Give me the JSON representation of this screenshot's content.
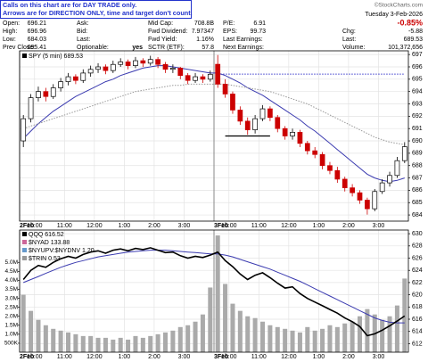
{
  "notice": [
    "Calls on this chart are for DAY TRADE only.",
    "Arrows are for DIRECTION ONLY, time and target don't count."
  ],
  "copyright": "©StockCharts.com",
  "date": "Tuesday  3-Feb-2026",
  "change_pct": "-0.85%",
  "quote": {
    "columns": [
      [
        {
          "label": "Open:",
          "value": "696.21"
        },
        {
          "label": "High:",
          "value": "696.96"
        },
        {
          "label": "Low:",
          "value": "684.03"
        },
        {
          "label": "Prev Close:",
          "value": "695.41"
        }
      ],
      [
        {
          "label": "Ask:"
        },
        {
          "label": "Bid:"
        },
        {
          "label": "Last:"
        },
        {
          "label": "Optionable:",
          "value": "yes",
          "bold": true
        }
      ],
      [
        {
          "label": "Mid Cap:",
          "value": "708.8B"
        },
        {
          "label": "Fwd Dividend:",
          "value": "7.97347"
        },
        {
          "label": "Fwd Yield:",
          "value": "1.16%"
        },
        {
          "label": "SCTR (ETF):",
          "value": "57.8"
        }
      ],
      [
        {
          "label": "P/E:",
          "value": "6.91"
        },
        {
          "label": "EPS:",
          "value": "99.73"
        },
        {
          "label": "Last Earnings:"
        },
        {
          "label": "Next Earnings:"
        }
      ],
      [
        {
          "label": "Chg:",
          "value": "-5.88"
        },
        {
          "label": "Last:",
          "value": "689.53"
        },
        {
          "label": "Volume:",
          "value": "101,372,656"
        }
      ]
    ]
  },
  "chart_data": [
    {
      "type": "candlestick",
      "categories": [
        "2Feb",
        null,
        "10:00",
        null,
        null,
        null,
        "11:00",
        null,
        null,
        null,
        "12:00",
        null,
        null,
        null,
        "1:00",
        null,
        null,
        null,
        "2:00",
        null,
        null,
        null,
        "3:00",
        null,
        null,
        null,
        "3Feb",
        null,
        "10:00",
        null,
        null,
        null,
        "11:00",
        null,
        null,
        null,
        "12:00",
        null,
        null,
        null,
        "1:00",
        null,
        null,
        null,
        "2:00",
        null,
        null,
        null,
        "3:00",
        null,
        null,
        null
      ],
      "ylim": [
        683.5,
        697.3
      ],
      "yticks": [
        684,
        685,
        686,
        687,
        688,
        689,
        690,
        691,
        692,
        693,
        694,
        695,
        696,
        697
      ],
      "grid": true,
      "up_color": "#000000",
      "down_color": "#cc0000",
      "series": [
        {
          "name": "SPY (5 min) 689.53",
          "color": "#000000",
          "open": [
            690.0,
            691.8,
            693.5,
            694.0,
            693.6,
            694.3,
            694.8,
            695.2,
            694.9,
            695.5,
            695.8,
            696.0,
            695.7,
            696.2,
            696.4,
            696.1,
            696.5,
            696.3,
            696.6,
            696.2,
            695.8,
            695.9,
            695.3,
            694.9,
            695.2,
            695.0,
            696.21,
            694.6,
            693.8,
            692.5,
            691.6,
            690.9,
            691.8,
            692.6,
            691.9,
            691.0,
            690.4,
            690.7,
            689.8,
            689.2,
            688.9,
            688.0,
            687.6,
            686.9,
            686.2,
            685.8,
            685.2,
            684.5,
            685.9,
            686.6,
            687.2,
            688.4
          ],
          "high": [
            692.1,
            693.8,
            694.4,
            694.3,
            694.6,
            695.1,
            695.5,
            695.4,
            695.8,
            696.1,
            696.3,
            696.2,
            696.5,
            696.7,
            696.6,
            696.8,
            696.7,
            696.9,
            696.8,
            696.4,
            696.2,
            696.0,
            695.5,
            695.5,
            695.4,
            695.7,
            696.96,
            695.0,
            694.0,
            692.8,
            691.9,
            692.1,
            692.9,
            692.8,
            692.1,
            691.2,
            691.0,
            690.9,
            690.0,
            689.5,
            689.1,
            688.3,
            687.9,
            687.1,
            686.5,
            686.0,
            685.4,
            686.1,
            686.9,
            687.5,
            688.7,
            689.9
          ],
          "low": [
            689.5,
            691.5,
            693.2,
            693.2,
            693.4,
            694.0,
            694.5,
            694.6,
            694.7,
            695.2,
            695.5,
            695.4,
            695.5,
            696.0,
            695.8,
            695.9,
            696.0,
            696.1,
            695.9,
            695.5,
            695.5,
            695.0,
            694.6,
            694.7,
            694.7,
            694.8,
            694.3,
            693.5,
            692.2,
            691.3,
            690.5,
            690.6,
            691.6,
            691.6,
            690.7,
            690.1,
            690.1,
            689.5,
            688.9,
            688.6,
            687.7,
            687.3,
            686.6,
            685.9,
            685.5,
            684.9,
            684.03,
            684.3,
            685.7,
            686.3,
            687.0,
            688.2
          ],
          "close": [
            691.8,
            693.5,
            694.0,
            693.6,
            694.3,
            694.8,
            695.2,
            694.9,
            695.5,
            695.8,
            696.0,
            695.7,
            696.2,
            696.4,
            696.1,
            696.5,
            696.3,
            696.6,
            696.2,
            695.8,
            695.9,
            695.3,
            694.9,
            695.2,
            695.0,
            695.4,
            694.6,
            693.8,
            692.5,
            691.6,
            690.9,
            691.8,
            692.6,
            691.9,
            691.0,
            690.4,
            690.7,
            689.8,
            689.2,
            688.9,
            688.0,
            687.6,
            686.9,
            686.2,
            685.8,
            685.2,
            684.5,
            685.9,
            686.6,
            687.2,
            688.4,
            689.53
          ]
        }
      ],
      "overlays": [
        {
          "color": "#3b3bb0",
          "style": "solid",
          "values": [
            690.2,
            690.8,
            691.4,
            691.9,
            692.4,
            692.8,
            693.2,
            693.6,
            693.9,
            694.2,
            694.5,
            694.8,
            695.0,
            695.3,
            695.5,
            695.7,
            695.9,
            696.0,
            696.1,
            696.1,
            696.0,
            695.9,
            695.8,
            695.7,
            695.6,
            695.5,
            695.5,
            695.3,
            695.0,
            694.7,
            694.3,
            694.0,
            693.7,
            693.3,
            692.9,
            692.5,
            692.1,
            691.7,
            691.2,
            690.8,
            690.3,
            689.8,
            689.3,
            688.8,
            688.3,
            687.8,
            687.3,
            687.0,
            686.8,
            686.7,
            686.8,
            687.0
          ]
        },
        {
          "color": "#999999",
          "style": "dotted",
          "values": [
            691.0,
            691.2,
            691.4,
            691.6,
            691.8,
            692.0,
            692.2,
            692.4,
            692.6,
            692.8,
            693.0,
            693.2,
            693.4,
            693.6,
            693.8,
            694.0,
            694.1,
            694.2,
            694.3,
            694.4,
            694.5,
            694.5,
            694.6,
            694.6,
            694.6,
            694.6,
            694.6,
            694.6,
            694.5,
            694.4,
            694.3,
            694.2,
            694.1,
            694.0,
            693.8,
            693.6,
            693.4,
            693.2,
            693.0,
            692.7,
            692.4,
            692.1,
            691.8,
            691.5,
            691.2,
            690.9,
            690.6,
            690.3,
            690.1,
            689.9,
            689.8,
            689.7
          ]
        }
      ],
      "hlines": [
        {
          "value": 695.41,
          "color": "#3a3acc",
          "style": "dotted",
          "start": 26,
          "end": 51
        },
        {
          "value": 690.4,
          "color": "#000000",
          "style": "solid",
          "start": 27,
          "end": 33
        }
      ]
    },
    {
      "type": "line",
      "categories": [
        "2Feb",
        null,
        "10:00",
        null,
        null,
        null,
        "11:00",
        null,
        null,
        null,
        "12:00",
        null,
        null,
        null,
        "1:00",
        null,
        null,
        null,
        "2:00",
        null,
        null,
        null,
        "3:00",
        null,
        null,
        null,
        "3Feb",
        null,
        "10:00",
        null,
        null,
        null,
        "11:00",
        null,
        null,
        null,
        "12:00",
        null,
        null,
        null,
        "1:00",
        null,
        null,
        null,
        "2:00",
        null,
        null,
        null,
        "3:00",
        null,
        null,
        null
      ],
      "ylim": [
        610.6,
        630.6
      ],
      "yticks": [
        612,
        614,
        616,
        618,
        620,
        622,
        624,
        626,
        628,
        630
      ],
      "y2lim": [
        0,
        6800000
      ],
      "y2ticks": [
        {
          "value": 500000,
          "label": "500K"
        },
        {
          "value": 1000000,
          "label": "1.0M"
        },
        {
          "value": 1500000,
          "label": "1.5M"
        },
        {
          "value": 2000000,
          "label": "2.0M"
        },
        {
          "value": 2500000,
          "label": "2.5M"
        },
        {
          "value": 3000000,
          "label": "3.0M"
        },
        {
          "value": 3500000,
          "label": "3.5M"
        },
        {
          "value": 4000000,
          "label": "4.0M"
        },
        {
          "value": 4500000,
          "label": "4.5M"
        },
        {
          "value": 5000000,
          "label": "5.0M"
        }
      ],
      "grid": true,
      "series": [
        {
          "color": "#aaaaaa",
          "axis": "y2",
          "kind": "bar",
          "values": [
            3200000,
            2300000,
            1800000,
            1500000,
            1300000,
            1200000,
            1100000,
            1000000,
            900000,
            900000,
            800000,
            800000,
            700000,
            800000,
            700000,
            900000,
            800000,
            900000,
            1000000,
            1100000,
            1200000,
            1400000,
            1500000,
            1700000,
            2100000,
            3600000,
            6500000,
            3800000,
            2700000,
            2300000,
            2000000,
            1900000,
            1700000,
            1500000,
            1400000,
            1300000,
            1200000,
            1100000,
            1400000,
            1200000,
            1300000,
            1500000,
            1400000,
            1600000,
            1700000,
            2000000,
            2400000,
            2100000,
            1800000,
            2000000,
            2600000,
            4100000
          ]
        },
        {
          "color": "#3b3bb0",
          "kind": "line",
          "values": [
            622.0,
            622.5,
            623.0,
            623.5,
            624.0,
            624.5,
            624.9,
            625.3,
            625.6,
            625.9,
            626.2,
            626.4,
            626.6,
            626.8,
            627.0,
            627.1,
            627.2,
            627.3,
            627.3,
            627.3,
            627.2,
            627.1,
            627.0,
            626.9,
            626.8,
            626.7,
            626.7,
            626.5,
            626.2,
            625.8,
            625.4,
            625.0,
            624.6,
            624.2,
            623.7,
            623.2,
            622.7,
            622.2,
            621.6,
            621.0,
            620.4,
            619.8,
            619.2,
            618.6,
            618.0,
            617.4,
            616.8,
            616.2,
            615.8,
            615.5,
            615.4,
            615.4
          ]
        },
        {
          "name": "QQQ 616.52",
          "color": "#000000",
          "kind": "line",
          "values": [
            622.5,
            624.0,
            624.8,
            624.5,
            625.3,
            625.9,
            626.3,
            626.0,
            626.6,
            627.0,
            627.2,
            626.8,
            627.3,
            627.5,
            627.2,
            627.6,
            627.4,
            627.7,
            627.3,
            626.9,
            627.0,
            626.4,
            626.0,
            626.3,
            626.1,
            626.5,
            627.0,
            625.6,
            624.6,
            623.4,
            622.5,
            623.2,
            623.6,
            622.8,
            621.9,
            621.1,
            621.3,
            620.2,
            619.4,
            618.8,
            618.2,
            617.6,
            617.0,
            616.2,
            615.6,
            614.8,
            613.3,
            613.6,
            614.2,
            614.9,
            615.7,
            616.52
          ]
        }
      ],
      "indicators": [
        {
          "name": "$NYAD 133.88",
          "color": "#cc6699"
        },
        {
          "name": "$NYUPV:$NYDNV 1.20",
          "color": "#6699cc"
        },
        {
          "name": "$TRIN 0.53",
          "color": "#999999"
        }
      ]
    }
  ]
}
